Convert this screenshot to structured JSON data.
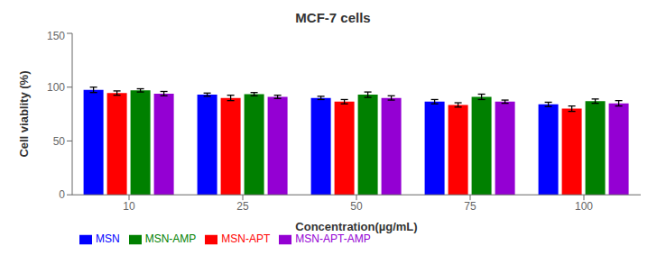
{
  "chart_data": {
    "type": "bar",
    "title": "MCF-7 cells",
    "xlabel": "Concentration(µg/mL)",
    "ylabel": "Cell viablity (%)",
    "categories": [
      "10",
      "25",
      "50",
      "75",
      "100"
    ],
    "series": [
      {
        "name": "MSN",
        "color": "#0000FF",
        "values": [
          97.5,
          93.0,
          90.0,
          86.5,
          84.0
        ],
        "errors": [
          2.5,
          1.5,
          1.5,
          2.0,
          2.0
        ]
      },
      {
        "name": "MSN-APT",
        "color": "#FF0000",
        "values": [
          94.5,
          90.0,
          86.5,
          83.5,
          80.0
        ],
        "errors": [
          2.0,
          2.5,
          2.0,
          2.0,
          2.5
        ]
      },
      {
        "name": "MSN-AMP",
        "color": "#008000",
        "values": [
          97.0,
          93.5,
          93.0,
          91.0,
          87.0
        ],
        "errors": [
          1.5,
          1.5,
          2.5,
          2.5,
          2.0
        ]
      },
      {
        "name": "MSN-APT-AMP",
        "color": "#9400D3",
        "values": [
          94.0,
          91.0,
          90.0,
          86.5,
          85.0
        ],
        "errors": [
          2.0,
          1.5,
          2.0,
          1.5,
          2.5
        ]
      }
    ],
    "ylim": [
      0,
      150
    ],
    "yticks": [
      0,
      50,
      100,
      150
    ],
    "grid": false,
    "legend": "bottom"
  }
}
